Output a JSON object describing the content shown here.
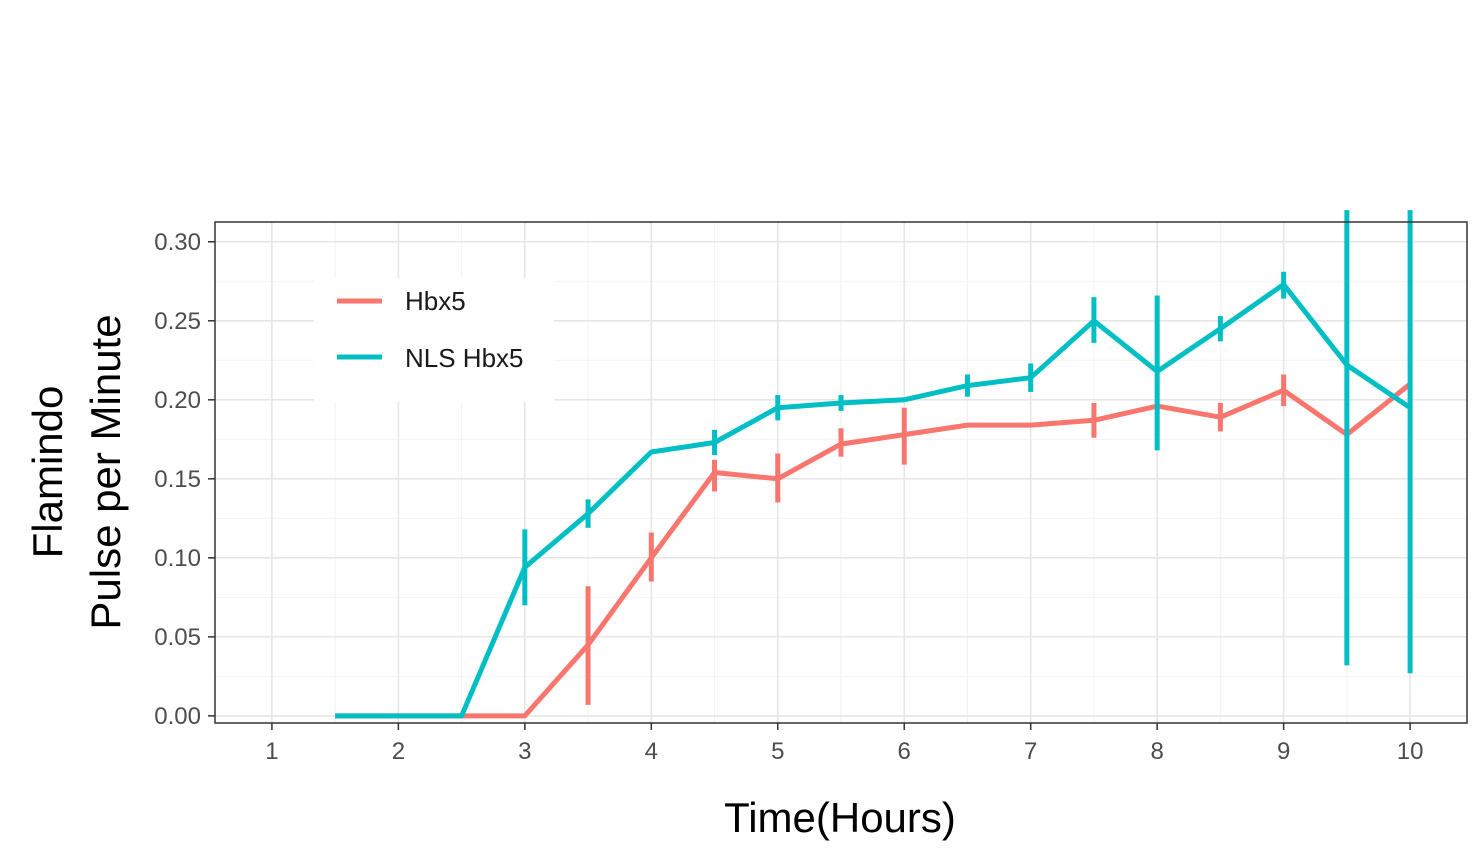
{
  "chart_data": {
    "type": "line",
    "title": "",
    "xlabel": "Time(Hours)",
    "ylabel_lines": [
      "Flamindo",
      "Pulse per Minute"
    ],
    "xlim": [
      0.55,
      10.45
    ],
    "ylim": [
      -0.0045,
      0.3125
    ],
    "x_ticks": [
      1,
      2,
      3,
      4,
      5,
      6,
      7,
      8,
      9,
      10
    ],
    "x_tick_labels": [
      "1",
      "2",
      "3",
      "4",
      "5",
      "6",
      "7",
      "8",
      "9",
      "10"
    ],
    "y_ticks": [
      0.0,
      0.05,
      0.1,
      0.15,
      0.2,
      0.25,
      0.3
    ],
    "y_tick_labels": [
      "0.00",
      "0.05",
      "0.10",
      "0.15",
      "0.20",
      "0.25",
      "0.30"
    ],
    "grid": true,
    "legend_position": "top-left",
    "series": [
      {
        "name": "Hbx5",
        "color": "#F8766D",
        "x": [
          1.5,
          2,
          2.5,
          3,
          3.5,
          4,
          4.5,
          5,
          5.5,
          6,
          6.5,
          7,
          7.5,
          8,
          8.5,
          9,
          9.5,
          10
        ],
        "y": [
          0.0,
          0.0,
          0.0,
          0.0,
          0.045,
          0.1,
          0.154,
          0.15,
          0.172,
          0.178,
          0.184,
          0.184,
          0.187,
          0.196,
          0.189,
          0.206,
          0.178,
          0.21
        ],
        "ymin": [
          null,
          null,
          null,
          null,
          0.007,
          0.085,
          0.142,
          0.135,
          0.164,
          0.159,
          null,
          null,
          0.176,
          null,
          0.18,
          0.196,
          null,
          null
        ],
        "ymax": [
          null,
          null,
          null,
          null,
          0.082,
          0.116,
          0.162,
          0.166,
          0.182,
          0.195,
          null,
          null,
          0.198,
          null,
          0.198,
          0.216,
          null,
          null
        ]
      },
      {
        "name": "NLS Hbx5",
        "color": "#00BFC4",
        "x": [
          1.5,
          2,
          2.5,
          3,
          3.5,
          4,
          4.5,
          5,
          5.5,
          6,
          6.5,
          7,
          7.5,
          8,
          8.5,
          9,
          9.5,
          10
        ],
        "y": [
          0.0,
          0.0,
          0.0,
          0.094,
          0.128,
          0.167,
          0.173,
          0.195,
          0.198,
          0.2,
          0.209,
          0.214,
          0.25,
          0.218,
          0.245,
          0.273,
          0.222,
          0.195
        ],
        "ymin": [
          null,
          null,
          null,
          0.07,
          0.119,
          null,
          0.165,
          0.187,
          0.193,
          null,
          0.202,
          0.205,
          0.236,
          0.168,
          0.237,
          0.264,
          0.032,
          0.027
        ],
        "ymax": [
          null,
          null,
          null,
          0.118,
          0.137,
          null,
          0.181,
          0.203,
          0.203,
          null,
          0.216,
          0.223,
          0.265,
          0.266,
          0.253,
          0.281,
          0.32,
          0.32
        ]
      }
    ]
  }
}
